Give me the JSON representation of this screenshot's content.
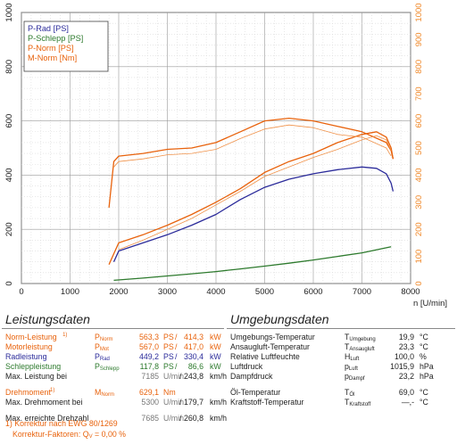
{
  "chart_data": {
    "type": "line",
    "x_axis": {
      "label": "n [U/min]",
      "range": [
        0,
        8000
      ],
      "ticks": [
        "0",
        "1000",
        "2000",
        "3000",
        "4000",
        "5000",
        "6000",
        "7000",
        "8000"
      ]
    },
    "y_axis_left": {
      "range": [
        0,
        1000
      ],
      "ticks": [
        "0",
        "200",
        "400",
        "600",
        "800",
        "1000"
      ],
      "color": "#222222"
    },
    "y_axis_right": {
      "range": [
        0,
        1000
      ],
      "ticks": [
        "0",
        "100",
        "200",
        "300",
        "400",
        "500",
        "600",
        "700",
        "800",
        "900",
        "1000"
      ],
      "color": "#f08a2c"
    },
    "grid": true,
    "legend": {
      "placement": "top-left",
      "entries": [
        {
          "label": "P-Rad [PS]",
          "color": "#2b2b9a"
        },
        {
          "label": "P-Schlepp [PS]",
          "color": "#2d7a2d"
        },
        {
          "label": "P-Norm [PS]",
          "color": "#e8620c"
        },
        {
          "label": "M-Norm [Nm]",
          "color": "#e8620c"
        }
      ]
    },
    "series": [
      {
        "name": "P-Rad [PS]",
        "color": "#2b2b9a",
        "width": 1.3,
        "x": [
          1900,
          2000,
          2500,
          3000,
          3500,
          4000,
          4500,
          5000,
          5500,
          6000,
          6500,
          7000,
          7300,
          7500,
          7600,
          7640
        ],
        "y": [
          80,
          120,
          150,
          180,
          215,
          255,
          310,
          355,
          385,
          405,
          420,
          430,
          425,
          405,
          370,
          340
        ]
      },
      {
        "name": "P-Schlepp [PS]",
        "color": "#2d7a2d",
        "width": 1.3,
        "x": [
          1900,
          2500,
          3000,
          3500,
          4000,
          4500,
          5000,
          5500,
          6000,
          6500,
          7000,
          7600
        ],
        "y": [
          12,
          20,
          28,
          36,
          44,
          54,
          64,
          75,
          87,
          100,
          113,
          136
        ]
      },
      {
        "name": "P-Norm [PS]",
        "color": "#e8620c",
        "width": 1.3,
        "x": [
          1800,
          1900,
          2000,
          2500,
          3000,
          3500,
          4000,
          4500,
          5000,
          5500,
          6000,
          6500,
          7000,
          7300,
          7500,
          7600,
          7640
        ],
        "y": [
          70,
          110,
          150,
          180,
          215,
          255,
          300,
          350,
          410,
          450,
          480,
          520,
          550,
          560,
          540,
          500,
          460
        ]
      },
      {
        "name": "M-Norm [Nm]",
        "color": "#e8620c",
        "width": 1.3,
        "x": [
          1800,
          1900,
          2000,
          2500,
          3000,
          3500,
          4000,
          4500,
          5000,
          5500,
          6000,
          6500,
          7000,
          7500,
          7600,
          7640
        ],
        "y": [
          280,
          450,
          470,
          480,
          495,
          500,
          520,
          560,
          600,
          610,
          600,
          580,
          560,
          520,
          490,
          460
        ]
      },
      {
        "color": "#f0924a",
        "width": 0.8,
        "x": [
          2000,
          2500,
          3000,
          3500,
          4000,
          4500,
          5000,
          5500,
          6000,
          6500,
          7000,
          7300,
          7500,
          7600
        ],
        "y": [
          125,
          160,
          200,
          240,
          290,
          340,
          395,
          430,
          465,
          495,
          530,
          545,
          530,
          490
        ]
      },
      {
        "color": "#f0924a",
        "width": 0.8,
        "x": [
          1900,
          2000,
          2500,
          3000,
          3500,
          4000,
          4500,
          5000,
          5500,
          6000,
          6500,
          7000,
          7500,
          7600
        ],
        "y": [
          430,
          450,
          460,
          475,
          480,
          495,
          535,
          570,
          585,
          575,
          550,
          540,
          500,
          470
        ]
      }
    ]
  },
  "leistungsdaten": {
    "title": "Leistungsdaten",
    "rows": [
      {
        "label": "Norm-Leistung",
        "fn": "1)",
        "symbol": "P",
        "symbol_sub": "Norm",
        "v1": "563,3",
        "u1": "PS",
        "sep": "/",
        "v2": "414,3",
        "u2": "kW",
        "color": "orange"
      },
      {
        "label": "Motorleistung",
        "fn": "",
        "symbol": "P",
        "symbol_sub": "Mot",
        "v1": "567,0",
        "u1": "PS",
        "sep": "/",
        "v2": "417,0",
        "u2": "kW",
        "color": "orange"
      },
      {
        "label": "Radleistung",
        "fn": "",
        "symbol": "P",
        "symbol_sub": "Rad",
        "v1": "449,2",
        "u1": "PS",
        "sep": "/",
        "v2": "330,4",
        "u2": "kW",
        "color": "blue"
      },
      {
        "label": "Schleppleistung",
        "fn": "",
        "symbol": "P",
        "symbol_sub": "Schlepp",
        "v1": "117,8",
        "u1": "PS",
        "sep": "/",
        "v2": "86,6",
        "u2": "kW",
        "color": "green"
      },
      {
        "label": "Max. Leistung bei",
        "fn": "",
        "symbol": "",
        "symbol_sub": "",
        "v1": "7185",
        "u1": "U/min",
        "sep": "/",
        "v2": "243,8",
        "u2": "km/h",
        "color": "dark"
      },
      {
        "label": "Drehmoment",
        "fn": "1)",
        "symbol": "M",
        "symbol_sub": "Norm",
        "v1": "629,1",
        "u1": "Nm",
        "sep": "",
        "v2": "",
        "u2": "",
        "color": "orange"
      },
      {
        "label": "Max. Drehmoment bei",
        "fn": "",
        "symbol": "",
        "symbol_sub": "",
        "v1": "5300",
        "u1": "U/min",
        "sep": "/",
        "v2": "179,7",
        "u2": "km/h",
        "color": "dark"
      },
      {
        "label": "Max. erreichte Drehzahl",
        "fn": "",
        "symbol": "",
        "symbol_sub": "",
        "v1": "7685",
        "u1": "U/min",
        "sep": "/",
        "v2": "260,8",
        "u2": "km/h",
        "color": "dark"
      }
    ],
    "footnote1": "1) Korrektur nach EWG 80/1269",
    "footnote2_label": "Korrektur-Faktoren: Q",
    "footnote2_sub": "V",
    "footnote2_value": "=   0,00 %"
  },
  "umgebungsdaten": {
    "title": "Umgebungsdaten",
    "rows": [
      {
        "label": "Umgebungs-Temperatur",
        "symbol": "T",
        "symbol_sub": "Umgebung",
        "value": "19,9",
        "unit": "°C"
      },
      {
        "label": "Ansaugluft-Temperatur",
        "symbol": "T",
        "symbol_sub": "Ansaugluft",
        "value": "23,3",
        "unit": "°C"
      },
      {
        "label": "Relative Luftfeuchte",
        "symbol": "H",
        "symbol_sub": "Luft",
        "value": "100,0",
        "unit": "%"
      },
      {
        "label": "Luftdruck",
        "symbol": "p",
        "symbol_sub": "Luft",
        "value": "1015,9",
        "unit": "hPa"
      },
      {
        "label": "Dampfdruck",
        "symbol": "p",
        "symbol_sub": "Dampf",
        "value": "23,2",
        "unit": "hPa"
      },
      {
        "label": "Öl-Temperatur",
        "symbol": "T",
        "symbol_sub": "Öl",
        "value": "69,0",
        "unit": "°C"
      },
      {
        "label": "Kraftstoff-Temperatur",
        "symbol": "T",
        "symbol_sub": "Kraftstoff",
        "value": "—,-",
        "unit": "°C"
      }
    ]
  }
}
